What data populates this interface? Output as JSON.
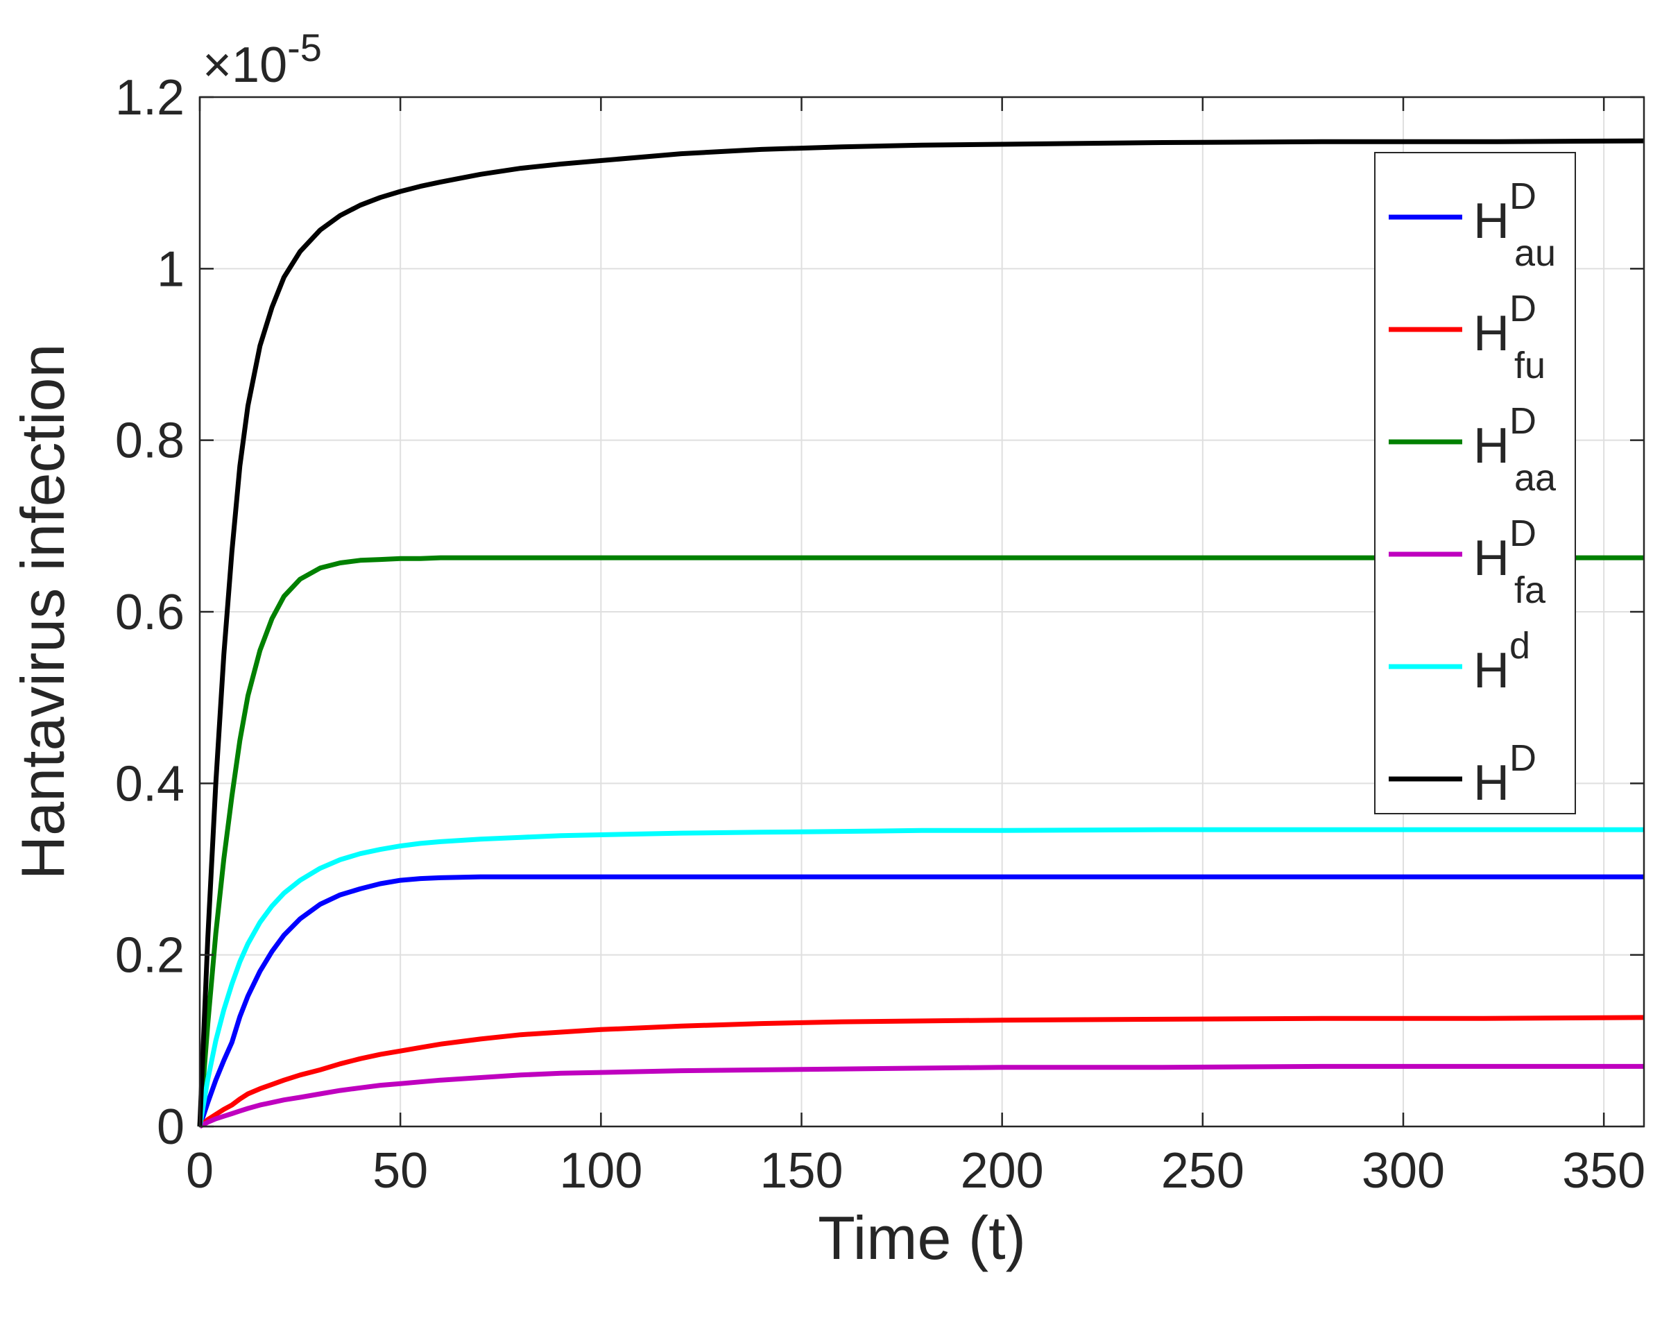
{
  "chart_data": {
    "type": "line",
    "xlabel": "Time (t)",
    "ylabel": "Hantavirus infection",
    "exponent_label": "×10",
    "exponent_power": "-5",
    "xlim": [
      0,
      360
    ],
    "ylim": [
      0,
      1.2
    ],
    "y_scale_factor": 1e-05,
    "grid": true,
    "legend_position": "top-right",
    "xticks": [
      0,
      50,
      100,
      150,
      200,
      250,
      300,
      350
    ],
    "xtick_labels": [
      "0",
      "50",
      "100",
      "150",
      "200",
      "250",
      "300",
      "350"
    ],
    "yticks": [
      0,
      0.2,
      0.4,
      0.6,
      0.8,
      1.0,
      1.2
    ],
    "ytick_labels": [
      "0",
      "0.2",
      "0.4",
      "0.6",
      "0.8",
      "1",
      "1.2"
    ],
    "x": [
      0,
      2,
      4,
      6,
      8,
      10,
      12,
      15,
      18,
      21,
      25,
      30,
      35,
      40,
      45,
      50,
      55,
      60,
      70,
      80,
      90,
      100,
      120,
      140,
      160,
      180,
      200,
      240,
      280,
      320,
      360
    ],
    "series": [
      {
        "name": "H",
        "sup": "D",
        "sub": "au",
        "color": "#0000ff",
        "values": [
          0,
          0.028,
          0.054,
          0.077,
          0.098,
          0.128,
          0.152,
          0.181,
          0.204,
          0.223,
          0.242,
          0.259,
          0.27,
          0.277,
          0.283,
          0.287,
          0.289,
          0.29,
          0.291,
          0.291,
          0.291,
          0.291,
          0.291,
          0.291,
          0.291,
          0.291,
          0.291,
          0.291,
          0.291,
          0.291,
          0.291
        ]
      },
      {
        "name": "H",
        "sup": "D",
        "sub": "fu",
        "color": "#ff0000",
        "values": [
          0,
          0.008,
          0.014,
          0.02,
          0.025,
          0.032,
          0.038,
          0.044,
          0.049,
          0.054,
          0.06,
          0.066,
          0.073,
          0.079,
          0.084,
          0.088,
          0.092,
          0.096,
          0.102,
          0.107,
          0.11,
          0.113,
          0.117,
          0.12,
          0.122,
          0.123,
          0.124,
          0.125,
          0.126,
          0.126,
          0.127
        ]
      },
      {
        "name": "H",
        "sup": "D",
        "sub": "aa",
        "color": "#008000",
        "values": [
          0,
          0.12,
          0.225,
          0.312,
          0.385,
          0.45,
          0.502,
          0.555,
          0.592,
          0.618,
          0.638,
          0.651,
          0.657,
          0.66,
          0.661,
          0.662,
          0.662,
          0.663,
          0.663,
          0.663,
          0.663,
          0.663,
          0.663,
          0.663,
          0.663,
          0.663,
          0.663,
          0.663,
          0.663,
          0.663,
          0.663
        ]
      },
      {
        "name": "H",
        "sup": "D",
        "sub": "fa",
        "color": "#bf00bf",
        "values": [
          0,
          0.005,
          0.009,
          0.012,
          0.015,
          0.018,
          0.021,
          0.025,
          0.028,
          0.031,
          0.034,
          0.038,
          0.042,
          0.045,
          0.048,
          0.05,
          0.052,
          0.054,
          0.057,
          0.06,
          0.062,
          0.063,
          0.065,
          0.066,
          0.067,
          0.068,
          0.069,
          0.069,
          0.07,
          0.07,
          0.07
        ]
      },
      {
        "name": "H",
        "sup": "d",
        "sub": "",
        "color": "#00ffff",
        "values": [
          0,
          0.055,
          0.1,
          0.136,
          0.166,
          0.192,
          0.213,
          0.238,
          0.257,
          0.272,
          0.287,
          0.301,
          0.311,
          0.318,
          0.323,
          0.327,
          0.33,
          0.332,
          0.335,
          0.337,
          0.339,
          0.34,
          0.342,
          0.343,
          0.344,
          0.345,
          0.345,
          0.346,
          0.346,
          0.346,
          0.346
        ]
      },
      {
        "name": "H",
        "sup": "D",
        "sub": "",
        "color": "#000000",
        "values": [
          0,
          0.22,
          0.4,
          0.55,
          0.67,
          0.77,
          0.84,
          0.91,
          0.955,
          0.99,
          1.02,
          1.045,
          1.062,
          1.074,
          1.083,
          1.09,
          1.096,
          1.101,
          1.11,
          1.117,
          1.122,
          1.126,
          1.134,
          1.139,
          1.142,
          1.144,
          1.145,
          1.147,
          1.148,
          1.148,
          1.149
        ]
      }
    ]
  }
}
